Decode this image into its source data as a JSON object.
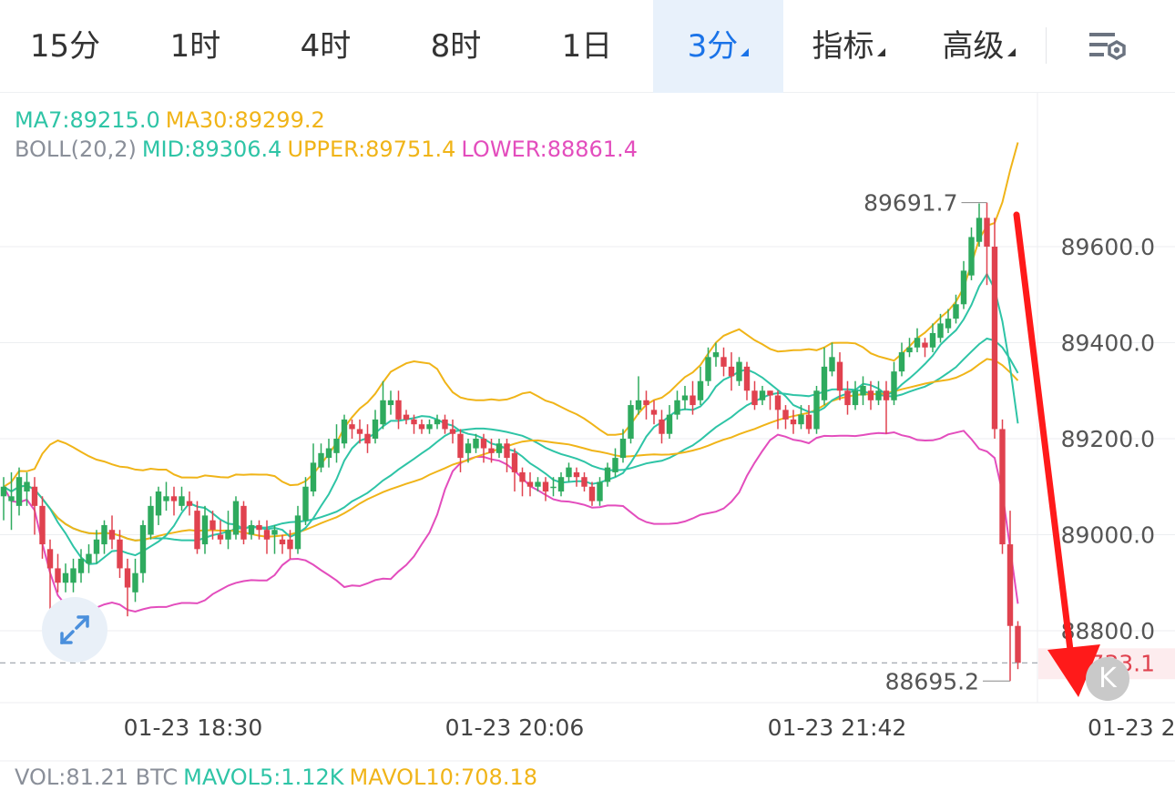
{
  "tabs": [
    {
      "label": "15分",
      "active": false,
      "dropdown": false
    },
    {
      "label": "1时",
      "active": false,
      "dropdown": false
    },
    {
      "label": "4时",
      "active": false,
      "dropdown": false
    },
    {
      "label": "8时",
      "active": false,
      "dropdown": false
    },
    {
      "label": "1日",
      "active": false,
      "dropdown": false
    },
    {
      "label": "3分",
      "active": true,
      "dropdown": true
    },
    {
      "label": "指标",
      "active": false,
      "dropdown": true
    },
    {
      "label": "高级",
      "active": false,
      "dropdown": true
    }
  ],
  "settings_icon": "chart-settings-icon",
  "legend": {
    "ma7": "MA7:89215.0",
    "ma30": "MA30:89299.2",
    "boll": "BOLL(20,2)",
    "mid": "MID:89306.4",
    "upper": "UPPER:89751.4",
    "lower": "LOWER:88861.4"
  },
  "volume_legend": {
    "vol": "VOL:81.21 BTC",
    "mavol5": "MAVOL5:1.12K",
    "mavol10": "MAVOL10:708.18"
  },
  "colors": {
    "up": "#2eaa5e",
    "down": "#e0424f",
    "ma7": "#2ec4a6",
    "ma30": "#f0b418",
    "mid": "#2ec4a6",
    "upper": "#f0b418",
    "lower": "#e34dbd",
    "accent": "#1a73e8",
    "arrow": "#ff1a1a"
  },
  "expand_icon": "expand-arrows-icon",
  "back_icon": "scroll-to-latest-icon",
  "back_label": "K",
  "chart_data": {
    "type": "candlestick",
    "y_ticks": [
      "89600.0",
      "89400.0",
      "89200.0",
      "89000.0",
      "88800.0"
    ],
    "ylim": [
      88650,
      89920
    ],
    "x_labels": [
      "01-23 18:30",
      "01-23 20:06",
      "01-23 21:42",
      "01-23 2"
    ],
    "high_label": "89691.7",
    "low_label": "88695.2",
    "current_price": "88733.1",
    "annotation": "red downward arrow",
    "candles": [
      [
        89080,
        89100,
        89030,
        89120
      ],
      [
        89070,
        89080,
        89010,
        89130
      ],
      [
        89060,
        89120,
        89040,
        89140
      ],
      [
        89090,
        89110,
        89060,
        89130
      ],
      [
        89100,
        89060,
        89000,
        89120
      ],
      [
        89060,
        88980,
        88950,
        89080
      ],
      [
        88970,
        88930,
        88840,
        88990
      ],
      [
        88930,
        88900,
        88880,
        88960
      ],
      [
        88900,
        88920,
        88880,
        88940
      ],
      [
        88900,
        88930,
        88880,
        88950
      ],
      [
        88920,
        88950,
        88900,
        88970
      ],
      [
        88940,
        88960,
        88920,
        88980
      ],
      [
        88960,
        88990,
        88940,
        89010
      ],
      [
        88980,
        89020,
        88960,
        89030
      ],
      [
        89010,
        88990,
        88970,
        89040
      ],
      [
        88990,
        88930,
        88910,
        89010
      ],
      [
        88930,
        88890,
        88830,
        88950
      ],
      [
        88880,
        88920,
        88860,
        88950
      ],
      [
        88920,
        89020,
        88900,
        89030
      ],
      [
        89000,
        89060,
        88990,
        89080
      ],
      [
        89040,
        89090,
        89020,
        89100
      ],
      [
        89070,
        89080,
        89050,
        89110
      ],
      [
        89080,
        89070,
        89040,
        89100
      ],
      [
        89060,
        89080,
        89050,
        89100
      ],
      [
        89070,
        89060,
        89040,
        89090
      ],
      [
        89050,
        88970,
        88960,
        89070
      ],
      [
        88980,
        89040,
        88960,
        89060
      ],
      [
        89030,
        89010,
        88990,
        89050
      ],
      [
        89000,
        88990,
        88980,
        89030
      ],
      [
        88990,
        89010,
        88970,
        89050
      ],
      [
        89000,
        89070,
        88990,
        89080
      ],
      [
        89060,
        88990,
        88980,
        89070
      ],
      [
        89000,
        89020,
        88990,
        89030
      ],
      [
        89020,
        89010,
        88990,
        89030
      ],
      [
        89010,
        88990,
        88960,
        89030
      ],
      [
        89000,
        89010,
        88960,
        89020
      ],
      [
        88990,
        88980,
        88960,
        89000
      ],
      [
        88990,
        88970,
        88950,
        89010
      ],
      [
        88970,
        89040,
        88960,
        89060
      ],
      [
        89030,
        89100,
        89020,
        89120
      ],
      [
        89090,
        89150,
        89080,
        89190
      ],
      [
        89140,
        89170,
        89130,
        89190
      ],
      [
        89160,
        89180,
        89140,
        89200
      ],
      [
        89170,
        89200,
        89150,
        89230
      ],
      [
        89190,
        89240,
        89180,
        89250
      ],
      [
        89230,
        89220,
        89200,
        89240
      ],
      [
        89220,
        89210,
        89190,
        89240
      ],
      [
        89210,
        89190,
        89170,
        89230
      ],
      [
        89200,
        89240,
        89190,
        89260
      ],
      [
        89230,
        89280,
        89220,
        89320
      ],
      [
        89270,
        89280,
        89250,
        89300
      ],
      [
        89280,
        89240,
        89220,
        89300
      ],
      [
        89250,
        89240,
        89230,
        89260
      ],
      [
        89240,
        89230,
        89210,
        89250
      ],
      [
        89230,
        89220,
        89210,
        89240
      ],
      [
        89220,
        89230,
        89210,
        89240
      ],
      [
        89230,
        89240,
        89220,
        89250
      ],
      [
        89240,
        89220,
        89210,
        89250
      ],
      [
        89220,
        89210,
        89190,
        89240
      ],
      [
        89210,
        89160,
        89130,
        89220
      ],
      [
        89170,
        89190,
        89150,
        89200
      ],
      [
        89180,
        89200,
        89170,
        89210
      ],
      [
        89200,
        89180,
        89150,
        89210
      ],
      [
        89180,
        89170,
        89150,
        89200
      ],
      [
        89170,
        89190,
        89160,
        89200
      ],
      [
        89190,
        89160,
        89130,
        89200
      ],
      [
        89170,
        89130,
        89090,
        89180
      ],
      [
        89130,
        89110,
        89080,
        89140
      ],
      [
        89110,
        89100,
        89080,
        89130
      ],
      [
        89100,
        89110,
        89090,
        89120
      ],
      [
        89110,
        89090,
        89070,
        89120
      ],
      [
        89100,
        89100,
        89080,
        89120
      ],
      [
        89090,
        89120,
        89080,
        89130
      ],
      [
        89120,
        89140,
        89110,
        89150
      ],
      [
        89130,
        89120,
        89100,
        89140
      ],
      [
        89120,
        89100,
        89090,
        89130
      ],
      [
        89100,
        89070,
        89060,
        89110
      ],
      [
        89070,
        89110,
        89060,
        89120
      ],
      [
        89110,
        89140,
        89100,
        89150
      ],
      [
        89130,
        89160,
        89120,
        89180
      ],
      [
        89160,
        89200,
        89150,
        89220
      ],
      [
        89200,
        89270,
        89190,
        89280
      ],
      [
        89260,
        89280,
        89250,
        89330
      ],
      [
        89280,
        89270,
        89240,
        89300
      ],
      [
        89260,
        89250,
        89230,
        89280
      ],
      [
        89240,
        89210,
        89190,
        89260
      ],
      [
        89210,
        89250,
        89200,
        89270
      ],
      [
        89250,
        89280,
        89240,
        89300
      ],
      [
        89280,
        89290,
        89260,
        89310
      ],
      [
        89290,
        89270,
        89250,
        89320
      ],
      [
        89280,
        89320,
        89270,
        89350
      ],
      [
        89320,
        89370,
        89310,
        89390
      ],
      [
        89370,
        89380,
        89350,
        89400
      ],
      [
        89370,
        89350,
        89330,
        89390
      ],
      [
        89350,
        89330,
        89300,
        89380
      ],
      [
        89320,
        89360,
        89310,
        89370
      ],
      [
        89350,
        89300,
        89280,
        89360
      ],
      [
        89300,
        89270,
        89260,
        89320
      ],
      [
        89280,
        89300,
        89270,
        89310
      ],
      [
        89300,
        89290,
        89260,
        89300
      ],
      [
        89290,
        89260,
        89220,
        89300
      ],
      [
        89260,
        89240,
        89220,
        89270
      ],
      [
        89240,
        89230,
        89210,
        89260
      ],
      [
        89230,
        89250,
        89220,
        89270
      ],
      [
        89250,
        89220,
        89210,
        89270
      ],
      [
        89220,
        89300,
        89210,
        89310
      ],
      [
        89280,
        89350,
        89270,
        89390
      ],
      [
        89340,
        89370,
        89330,
        89400
      ],
      [
        89360,
        89300,
        89280,
        89380
      ],
      [
        89300,
        89270,
        89250,
        89320
      ],
      [
        89270,
        89300,
        89260,
        89320
      ],
      [
        89290,
        89310,
        89270,
        89330
      ],
      [
        89300,
        89280,
        89260,
        89320
      ],
      [
        89280,
        89300,
        89270,
        89320
      ],
      [
        89300,
        89280,
        89210,
        89320
      ],
      [
        89280,
        89340,
        89270,
        89360
      ],
      [
        89340,
        89380,
        89330,
        89400
      ],
      [
        89380,
        89390,
        89370,
        89410
      ],
      [
        89390,
        89410,
        89380,
        89430
      ],
      [
        89400,
        89390,
        89370,
        89410
      ],
      [
        89390,
        89420,
        89380,
        89440
      ],
      [
        89410,
        89440,
        89400,
        89460
      ],
      [
        89430,
        89450,
        89420,
        89470
      ],
      [
        89450,
        89480,
        89440,
        89500
      ],
      [
        89480,
        89550,
        89470,
        89570
      ],
      [
        89540,
        89620,
        89530,
        89640
      ],
      [
        89610,
        89660,
        89600,
        89690
      ],
      [
        89660,
        89600,
        89520,
        89691.7
      ],
      [
        89600,
        89220,
        89200,
        89660
      ],
      [
        89220,
        88980,
        88960,
        89240
      ],
      [
        88980,
        88810,
        88695.2,
        89050
      ],
      [
        88810,
        88733.1,
        88720,
        88820
      ]
    ]
  }
}
